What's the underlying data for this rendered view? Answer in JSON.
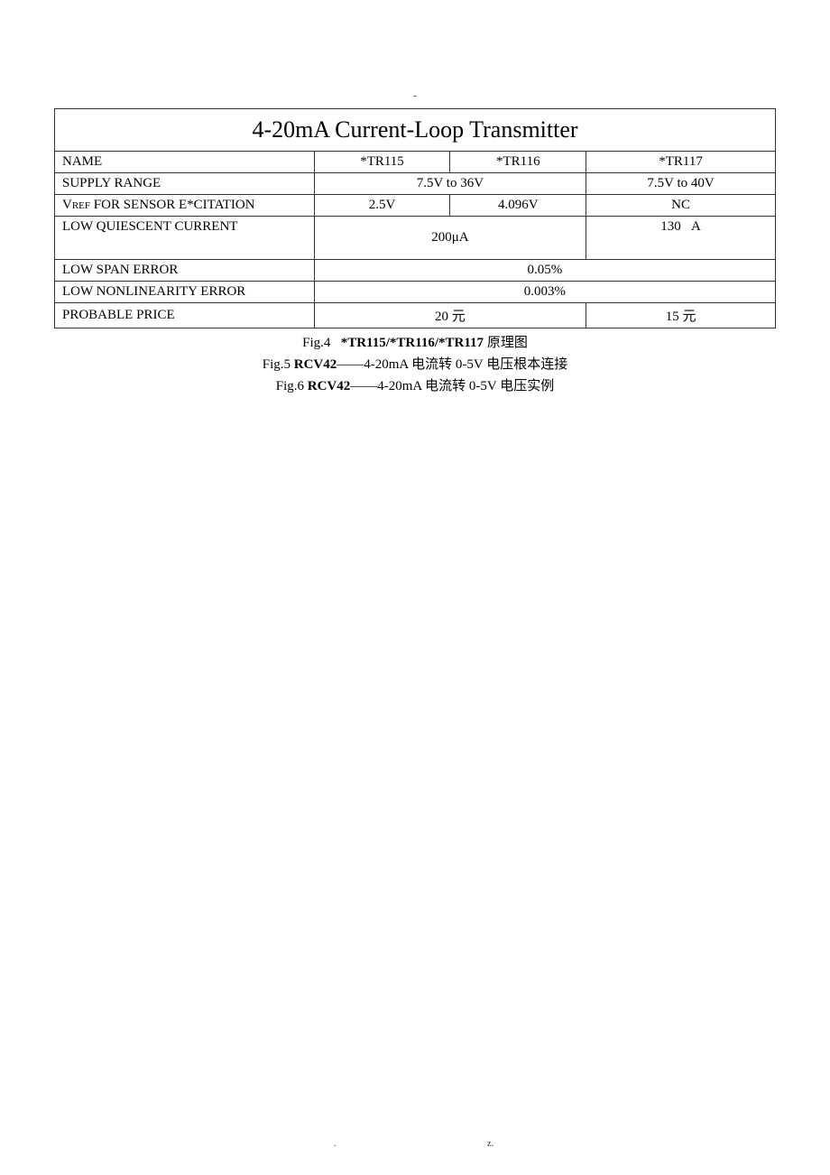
{
  "page": {
    "top_marker": "-",
    "footer_left": ".",
    "footer_right": "z."
  },
  "table": {
    "title": "4-20mA Current-Loop Transmitter",
    "columns": [
      "*TR115",
      "*TR116",
      "*TR117"
    ],
    "rows": {
      "name": {
        "label": "NAME",
        "c1": "*TR115",
        "c2": "*TR116",
        "c3": "*TR117"
      },
      "supply_range": {
        "label": "SUPPLY RANGE",
        "c12": "7.5V to 36V",
        "c3": "7.5V to 40V"
      },
      "vref": {
        "label_prefix": "V",
        "label_sub": "REF",
        "label_suffix": " FOR SENSOR E*CITATION",
        "c1": "2.5V",
        "c2": "4.096V",
        "c3": "NC"
      },
      "quiescent": {
        "label": "LOW QUIESCENT CURRENT",
        "c12": "200μA",
        "c3": "130   A"
      },
      "span_error": {
        "label": "LOW SPAN ERROR",
        "c123": "0.05%"
      },
      "nonlinearity": {
        "label": "LOW NONLINEARITY ERROR",
        "c123": "0.003%"
      },
      "price": {
        "label": "PROBABLE PRICE",
        "c12": "20 元",
        "c3": "15 元"
      }
    }
  },
  "captions": {
    "fig4_pre": "Fig.4   ",
    "fig4_bold": "*TR115/*TR116/*TR117",
    "fig4_post": " 原理图",
    "fig5_pre": "Fig.5 ",
    "fig5_bold": "RCV42",
    "fig5_post": "——4-20mA 电流转 0-5V 电压根本连接",
    "fig6_pre": "Fig.6 ",
    "fig6_bold": "RCV42",
    "fig6_post": "——4-20mA 电流转 0-5V 电压实例"
  }
}
